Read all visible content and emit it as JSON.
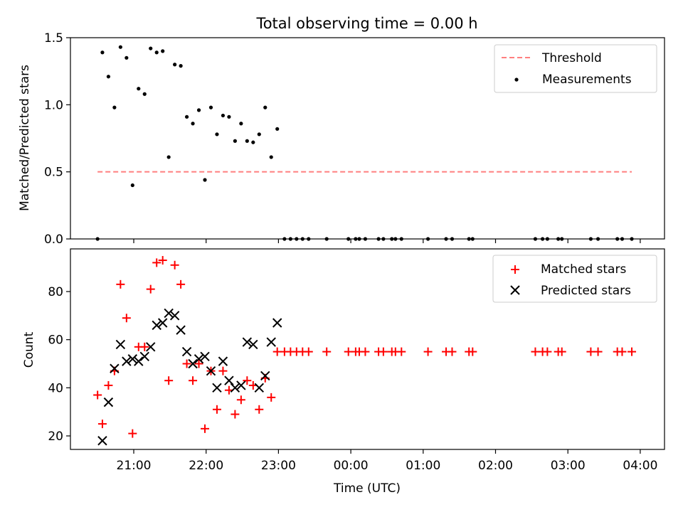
{
  "chart_data": [
    {
      "type": "scatter",
      "title": "Total observing time = 0.00 h",
      "xlabel": "",
      "ylabel": "Matched/Predicted stars",
      "ylim": [
        0,
        1.5
      ],
      "yticks": [
        "0.0",
        "0.5",
        "1.0",
        "1.5"
      ],
      "legend_position": "top-right",
      "threshold": {
        "name": "Threshold",
        "value": 0.5,
        "x_start": "20:30",
        "x_end": "03:53",
        "color": "#ff7f7f"
      },
      "series": [
        {
          "name": "Measurements",
          "color": "#000000",
          "points": [
            [
              "20:30",
              0.0
            ],
            [
              "20:34",
              1.39
            ],
            [
              "20:39",
              1.21
            ],
            [
              "20:44",
              0.98
            ],
            [
              "20:49",
              1.43
            ],
            [
              "20:54",
              1.35
            ],
            [
              "20:59",
              0.4
            ],
            [
              "21:04",
              1.12
            ],
            [
              "21:09",
              1.08
            ],
            [
              "21:14",
              1.42
            ],
            [
              "21:19",
              1.39
            ],
            [
              "21:24",
              1.4
            ],
            [
              "21:29",
              0.61
            ],
            [
              "21:34",
              1.3
            ],
            [
              "21:39",
              1.29
            ],
            [
              "21:44",
              0.91
            ],
            [
              "21:49",
              0.86
            ],
            [
              "21:54",
              0.96
            ],
            [
              "21:59",
              0.44
            ],
            [
              "22:04",
              0.98
            ],
            [
              "22:09",
              0.78
            ],
            [
              "22:14",
              0.92
            ],
            [
              "22:19",
              0.91
            ],
            [
              "22:24",
              0.73
            ],
            [
              "22:29",
              0.86
            ],
            [
              "22:34",
              0.73
            ],
            [
              "22:39",
              0.72
            ],
            [
              "22:44",
              0.78
            ],
            [
              "22:49",
              0.98
            ],
            [
              "22:54",
              0.61
            ],
            [
              "22:59",
              0.82
            ],
            [
              "23:05",
              0.0
            ],
            [
              "23:10",
              0.0
            ],
            [
              "23:15",
              0.0
            ],
            [
              "23:20",
              0.0
            ],
            [
              "23:25",
              0.0
            ],
            [
              "23:40",
              0.0
            ],
            [
              "23:58",
              0.0
            ],
            [
              "00:04",
              0.0
            ],
            [
              "00:07",
              0.0
            ],
            [
              "00:12",
              0.0
            ],
            [
              "00:23",
              0.0
            ],
            [
              "00:27",
              0.0
            ],
            [
              "00:34",
              0.0
            ],
            [
              "00:37",
              0.0
            ],
            [
              "00:42",
              0.0
            ],
            [
              "01:04",
              0.0
            ],
            [
              "01:19",
              0.0
            ],
            [
              "01:24",
              0.0
            ],
            [
              "01:38",
              0.0
            ],
            [
              "01:41",
              0.0
            ],
            [
              "02:33",
              0.0
            ],
            [
              "02:39",
              0.0
            ],
            [
              "02:43",
              0.0
            ],
            [
              "02:52",
              0.0
            ],
            [
              "02:55",
              0.0
            ],
            [
              "03:19",
              0.0
            ],
            [
              "03:25",
              0.0
            ],
            [
              "03:41",
              0.0
            ],
            [
              "03:45",
              0.0
            ],
            [
              "03:53",
              0.0
            ]
          ]
        }
      ]
    },
    {
      "type": "scatter",
      "title": "",
      "xlabel": "Time (UTC)",
      "ylabel": "Count",
      "yticks": [
        "20",
        "40",
        "60",
        "80"
      ],
      "xticks": [
        "21:00",
        "22:00",
        "23:00",
        "00:00",
        "01:00",
        "02:00",
        "03:00",
        "04:00"
      ],
      "legend_position": "top-right",
      "series": [
        {
          "name": "Matched stars",
          "marker": "+",
          "color": "#ff0000",
          "points": [
            [
              "20:30",
              37
            ],
            [
              "20:34",
              25
            ],
            [
              "20:39",
              41
            ],
            [
              "20:44",
              47
            ],
            [
              "20:49",
              83
            ],
            [
              "20:54",
              69
            ],
            [
              "20:59",
              21
            ],
            [
              "21:04",
              57
            ],
            [
              "21:09",
              57
            ],
            [
              "21:14",
              81
            ],
            [
              "21:19",
              92
            ],
            [
              "21:24",
              93
            ],
            [
              "21:29",
              43
            ],
            [
              "21:34",
              91
            ],
            [
              "21:39",
              83
            ],
            [
              "21:44",
              50
            ],
            [
              "21:49",
              43
            ],
            [
              "21:54",
              50
            ],
            [
              "21:59",
              23
            ],
            [
              "22:04",
              47
            ],
            [
              "22:09",
              31
            ],
            [
              "22:14",
              47
            ],
            [
              "22:19",
              39
            ],
            [
              "22:24",
              29
            ],
            [
              "22:29",
              35
            ],
            [
              "22:34",
              43
            ],
            [
              "22:39",
              41
            ],
            [
              "22:44",
              31
            ],
            [
              "22:49",
              44
            ],
            [
              "22:54",
              36
            ],
            [
              "22:59",
              55
            ],
            [
              "23:05",
              55
            ],
            [
              "23:10",
              55
            ],
            [
              "23:15",
              55
            ],
            [
              "23:20",
              55
            ],
            [
              "23:25",
              55
            ],
            [
              "23:40",
              55
            ],
            [
              "23:58",
              55
            ],
            [
              "00:04",
              55
            ],
            [
              "00:07",
              55
            ],
            [
              "00:12",
              55
            ],
            [
              "00:23",
              55
            ],
            [
              "00:27",
              55
            ],
            [
              "00:34",
              55
            ],
            [
              "00:37",
              55
            ],
            [
              "00:42",
              55
            ],
            [
              "01:04",
              55
            ],
            [
              "01:19",
              55
            ],
            [
              "01:24",
              55
            ],
            [
              "01:38",
              55
            ],
            [
              "01:41",
              55
            ],
            [
              "02:33",
              55
            ],
            [
              "02:39",
              55
            ],
            [
              "02:43",
              55
            ],
            [
              "02:52",
              55
            ],
            [
              "02:55",
              55
            ],
            [
              "03:19",
              55
            ],
            [
              "03:25",
              55
            ],
            [
              "03:41",
              55
            ],
            [
              "03:45",
              55
            ],
            [
              "03:53",
              55
            ]
          ]
        },
        {
          "name": "Predicted stars",
          "marker": "x",
          "color": "#000000",
          "points": [
            [
              "20:34",
              18
            ],
            [
              "20:39",
              34
            ],
            [
              "20:44",
              48
            ],
            [
              "20:49",
              58
            ],
            [
              "20:54",
              51
            ],
            [
              "20:59",
              52
            ],
            [
              "21:04",
              51
            ],
            [
              "21:09",
              53
            ],
            [
              "21:14",
              57
            ],
            [
              "21:19",
              66
            ],
            [
              "21:24",
              67
            ],
            [
              "21:29",
              71
            ],
            [
              "21:34",
              70
            ],
            [
              "21:39",
              64
            ],
            [
              "21:44",
              55
            ],
            [
              "21:49",
              50
            ],
            [
              "21:54",
              52
            ],
            [
              "21:59",
              53
            ],
            [
              "22:04",
              47
            ],
            [
              "22:09",
              40
            ],
            [
              "22:14",
              51
            ],
            [
              "22:19",
              43
            ],
            [
              "22:24",
              40
            ],
            [
              "22:29",
              41
            ],
            [
              "22:34",
              59
            ],
            [
              "22:39",
              58
            ],
            [
              "22:44",
              40
            ],
            [
              "22:49",
              45
            ],
            [
              "22:54",
              59
            ],
            [
              "22:59",
              67
            ]
          ]
        }
      ]
    }
  ]
}
